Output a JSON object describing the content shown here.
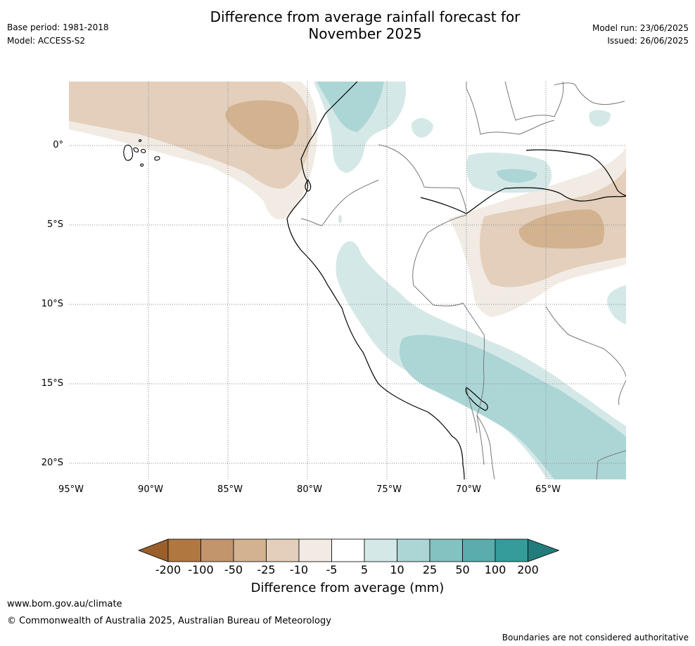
{
  "title_line1": "Difference from average rainfall forecast for",
  "title_line2": "November 2025",
  "meta_left": {
    "base_period": "Base period: 1981-2018",
    "model": "Model: ACCESS-S2"
  },
  "meta_right": {
    "model_run": "Model run: 23/06/2025",
    "issued": "Issued: 26/06/2025"
  },
  "lat_labels": [
    "0°",
    "5°S",
    "10°S",
    "15°S",
    "20°S"
  ],
  "lon_labels": [
    "95°W",
    "90°W",
    "85°W",
    "80°W",
    "75°W",
    "70°W",
    "65°W"
  ],
  "colorbar": {
    "ticks": [
      "-200",
      "-100",
      "-50",
      "-25",
      "-10",
      "-5",
      "5",
      "10",
      "25",
      "50",
      "100",
      "200"
    ],
    "colors": [
      "#9a5f2a",
      "#b07840",
      "#c3956c",
      "#d3b290",
      "#e3cfbb",
      "#f1ebe4",
      "#ffffff",
      "#d5e8e8",
      "#acd6d6",
      "#84c2c2",
      "#5badad",
      "#359b9b",
      "#227c7c"
    ],
    "label": "Difference from average (mm)"
  },
  "footer": {
    "url": "www.bom.gov.au/climate",
    "copyright": "© Commonwealth of Australia 2025, Australian Bureau of Meteorology",
    "disclaimer": "Boundaries are not considered authoritative"
  }
}
